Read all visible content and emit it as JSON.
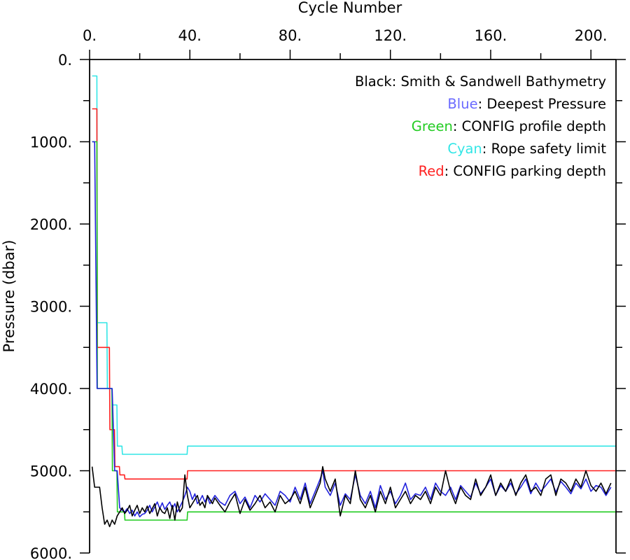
{
  "chart_data": {
    "type": "line",
    "xlabel": "Cycle Number",
    "ylabel": "Pressure (dbar)",
    "xlim": [
      0,
      210
    ],
    "ylim": [
      6000,
      0
    ],
    "x_ticks": [
      0,
      40,
      80,
      120,
      160,
      200
    ],
    "x_tick_labels": [
      "0.",
      "40.",
      "80.",
      "120.",
      "160.",
      "200."
    ],
    "y_ticks": [
      0,
      1000,
      2000,
      3000,
      4000,
      5000,
      6000
    ],
    "y_tick_labels": [
      "0.",
      "1000.",
      "2000.",
      "3000.",
      "4000.",
      "5000.",
      "6000."
    ],
    "legend": [
      {
        "color_word": "Black",
        "rest": ": Smith & Sandwell Bathymetry",
        "color": "#000000"
      },
      {
        "color_word": "Blue",
        "rest": ": Deepest Pressure",
        "color": "#6a6aff"
      },
      {
        "color_word": "Green",
        "rest": ": CONFIG profile depth",
        "color": "#22cc22"
      },
      {
        "color_word": "Cyan",
        "rest": ": Rope safety limit",
        "color": "#33e6e6"
      },
      {
        "color_word": "Red",
        "rest": ": CONFIG parking depth",
        "color": "#ff2020"
      }
    ],
    "series": [
      {
        "color": "#33e6e6",
        "x": [
          1,
          2.9,
          3.1,
          6.9,
          7.1,
          8.9,
          9.1,
          10.9,
          11.1,
          12.9,
          13.1,
          38.9,
          39.1,
          210
        ],
        "y": [
          200,
          200,
          3200,
          3200,
          4000,
          4000,
          4200,
          4200,
          4700,
          4700,
          4800,
          4800,
          4700,
          4700
        ]
      },
      {
        "color": "#ff2020",
        "x": [
          1,
          2.9,
          3.1,
          7.9,
          8.1,
          9.9,
          10.1,
          11.9,
          12.1,
          13.9,
          14.1,
          38.9,
          39.1,
          210
        ],
        "y": [
          600,
          600,
          3500,
          3500,
          4500,
          4500,
          4950,
          4950,
          5050,
          5050,
          5100,
          5100,
          5000,
          5000
        ]
      },
      {
        "color": "#22cc22",
        "x": [
          1,
          2.9,
          3.1,
          8.9,
          9.1,
          10.9,
          11.1,
          13.9,
          14.1,
          38.9,
          39.1,
          210
        ],
        "y": [
          1000,
          1000,
          4000,
          4000,
          5000,
          5000,
          5500,
          5500,
          5600,
          5600,
          5500,
          5500
        ]
      },
      {
        "color": "#2222dd",
        "x": [
          1,
          2,
          3,
          4,
          5,
          6,
          7,
          8,
          9,
          10,
          11,
          12,
          13,
          14,
          15,
          16,
          17,
          18,
          19,
          20,
          21,
          22,
          23,
          24,
          25,
          26,
          27,
          28,
          29,
          30,
          31,
          32,
          33,
          34,
          35,
          36,
          37,
          38,
          39,
          40,
          41,
          42,
          43,
          44,
          45,
          46,
          47,
          48,
          49,
          50,
          52,
          54,
          56,
          58,
          60,
          62,
          64,
          66,
          68,
          70,
          72,
          74,
          76,
          78,
          80,
          82,
          84,
          86,
          88,
          90,
          92,
          93,
          94,
          96,
          98,
          100,
          102,
          104,
          106,
          108,
          110,
          112,
          114,
          116,
          118,
          120,
          122,
          124,
          126,
          128,
          130,
          132,
          134,
          136,
          138,
          140,
          142,
          144,
          146,
          148,
          150,
          152,
          154,
          156,
          158,
          160,
          162,
          164,
          166,
          168,
          170,
          172,
          174,
          176,
          178,
          180,
          182,
          184,
          186,
          188,
          190,
          192,
          194,
          196,
          198,
          200,
          202,
          204,
          206,
          208
        ],
        "y": [
          1000,
          1000,
          4000,
          4000,
          4000,
          4000,
          4000,
          4000,
          4000,
          5000,
          5000,
          5450,
          5480,
          5500,
          5460,
          5520,
          5480,
          5550,
          5500,
          5560,
          5530,
          5520,
          5480,
          5420,
          5500,
          5440,
          5380,
          5460,
          5390,
          5470,
          5420,
          5380,
          5460,
          5400,
          5500,
          5440,
          5380,
          5300,
          5200,
          5250,
          5350,
          5280,
          5400,
          5360,
          5300,
          5380,
          5320,
          5400,
          5350,
          5300,
          5380,
          5420,
          5300,
          5250,
          5400,
          5320,
          5450,
          5300,
          5380,
          5280,
          5350,
          5420,
          5250,
          5300,
          5380,
          5200,
          5350,
          5150,
          5400,
          5250,
          5100,
          5000,
          5200,
          5300,
          5150,
          5420,
          5280,
          5350,
          5050,
          5300,
          5400,
          5250,
          5450,
          5180,
          5350,
          5250,
          5400,
          5300,
          5150,
          5350,
          5280,
          5300,
          5200,
          5350,
          5150,
          5250,
          5300,
          5200,
          5350,
          5180,
          5250,
          5320,
          5150,
          5280,
          5200,
          5100,
          5300,
          5180,
          5250,
          5150,
          5280,
          5200,
          5100,
          5280,
          5150,
          5250,
          5180,
          5100,
          5260,
          5130,
          5200,
          5280,
          5150,
          5220,
          5100,
          5250,
          5180,
          5200,
          5300,
          5200
        ]
      },
      {
        "color": "#000000",
        "x": [
          1,
          2,
          3,
          4,
          5,
          6,
          7,
          8,
          9,
          10,
          11,
          12,
          13,
          14,
          15,
          16,
          17,
          18,
          19,
          20,
          21,
          22,
          23,
          24,
          25,
          26,
          27,
          28,
          29,
          30,
          31,
          32,
          33,
          34,
          35,
          36,
          37,
          38,
          39,
          40,
          41,
          42,
          43,
          44,
          45,
          46,
          47,
          48,
          49,
          50,
          52,
          54,
          56,
          58,
          60,
          62,
          64,
          66,
          68,
          70,
          72,
          74,
          76,
          78,
          80,
          82,
          84,
          86,
          88,
          90,
          92,
          93,
          94,
          96,
          98,
          100,
          102,
          104,
          106,
          108,
          110,
          112,
          114,
          116,
          118,
          120,
          122,
          124,
          126,
          128,
          130,
          132,
          134,
          136,
          138,
          140,
          142,
          144,
          146,
          148,
          150,
          152,
          154,
          156,
          158,
          160,
          162,
          164,
          166,
          168,
          170,
          172,
          174,
          176,
          178,
          180,
          182,
          184,
          186,
          188,
          190,
          192,
          194,
          196,
          198,
          200,
          202,
          204,
          206,
          208
        ],
        "y": [
          4950,
          5200,
          5200,
          5200,
          5450,
          5650,
          5600,
          5680,
          5600,
          5650,
          5550,
          5500,
          5450,
          5520,
          5480,
          5420,
          5550,
          5480,
          5420,
          5520,
          5450,
          5500,
          5430,
          5520,
          5460,
          5400,
          5550,
          5450,
          5500,
          5520,
          5450,
          5580,
          5420,
          5600,
          5380,
          5500,
          5450,
          5050,
          5300,
          5450,
          5400,
          5350,
          5300,
          5420,
          5380,
          5450,
          5300,
          5350,
          5400,
          5330,
          5420,
          5500,
          5380,
          5280,
          5520,
          5350,
          5480,
          5400,
          5300,
          5450,
          5380,
          5500,
          5300,
          5400,
          5350,
          5250,
          5400,
          5200,
          5450,
          5300,
          5150,
          4950,
          5100,
          5250,
          5100,
          5550,
          5300,
          5400,
          5000,
          5350,
          5450,
          5300,
          5500,
          5250,
          5400,
          5200,
          5450,
          5350,
          5250,
          5400,
          5300,
          5350,
          5250,
          5400,
          5200,
          5300,
          5000,
          5250,
          5400,
          5200,
          5300,
          5350,
          5100,
          5300,
          5200,
          5050,
          5300,
          5150,
          5250,
          5100,
          5300,
          5150,
          5050,
          5250,
          5200,
          5300,
          5100,
          5050,
          5300,
          5100,
          5150,
          5250,
          5100,
          5200,
          5000,
          5180,
          5250,
          5150,
          5280,
          5150
        ]
      }
    ]
  }
}
